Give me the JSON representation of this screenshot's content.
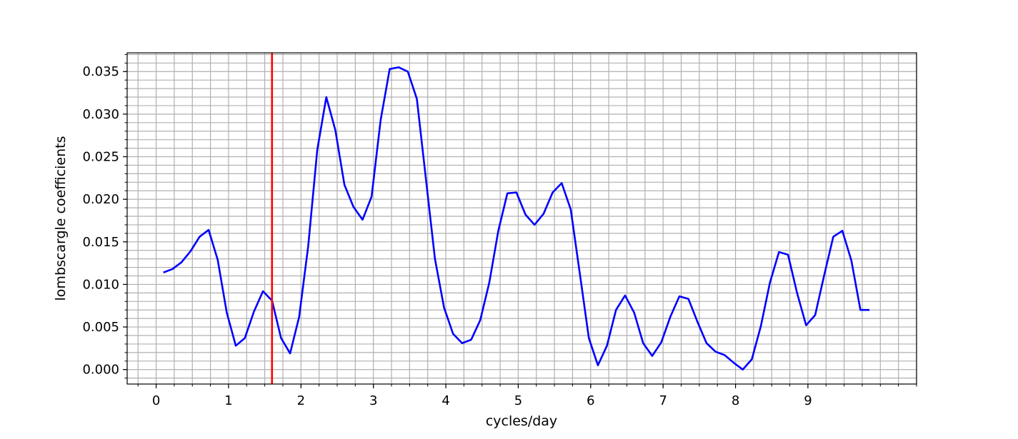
{
  "chart_data": {
    "type": "line",
    "title": "",
    "xlabel": "cycles/day",
    "ylabel": "lombscargle coefficients",
    "xlim": [
      -0.4,
      10.5
    ],
    "ylim": [
      -0.0017,
      0.0372
    ],
    "grid": true,
    "x_major_ticks": [
      0,
      1,
      2,
      3,
      4,
      5,
      6,
      7,
      8,
      9
    ],
    "x_major_tick_labels": [
      "0",
      "1",
      "2",
      "3",
      "4",
      "5",
      "6",
      "7",
      "8",
      "9"
    ],
    "y_major_ticks": [
      0.0,
      0.005,
      0.01,
      0.015,
      0.02,
      0.025,
      0.03,
      0.035
    ],
    "y_major_tick_labels": [
      "0.000",
      "0.005",
      "0.010",
      "0.015",
      "0.020",
      "0.025",
      "0.030",
      "0.035"
    ],
    "series": [
      {
        "color": "#0000ff",
        "x": [
          0.1,
          0.225,
          0.35,
          0.475,
          0.6,
          0.725,
          0.85,
          0.975,
          1.1,
          1.225,
          1.35,
          1.475,
          1.6,
          1.725,
          1.85,
          1.975,
          2.1,
          2.225,
          2.35,
          2.475,
          2.6,
          2.725,
          2.85,
          2.975,
          3.1,
          3.225,
          3.35,
          3.475,
          3.6,
          3.725,
          3.85,
          3.975,
          4.1,
          4.225,
          4.35,
          4.475,
          4.6,
          4.725,
          4.85,
          4.975,
          5.1,
          5.225,
          5.35,
          5.475,
          5.6,
          5.725,
          5.85,
          5.975,
          6.1,
          6.225,
          6.35,
          6.475,
          6.6,
          6.725,
          6.85,
          6.975,
          7.1,
          7.225,
          7.35,
          7.475,
          7.6,
          7.725,
          7.85,
          7.975,
          8.1,
          8.225,
          8.35,
          8.475,
          8.6,
          8.725,
          8.85,
          8.975,
          9.1,
          9.225,
          9.35,
          9.475,
          9.6,
          9.725,
          9.85
        ],
        "y": [
          0.0114,
          0.0118,
          0.0126,
          0.0139,
          0.0156,
          0.0164,
          0.0129,
          0.0067,
          0.0028,
          0.0037,
          0.0068,
          0.0092,
          0.0081,
          0.0037,
          0.0019,
          0.0062,
          0.0145,
          0.0258,
          0.032,
          0.0281,
          0.0217,
          0.0191,
          0.0176,
          0.0203,
          0.0293,
          0.0353,
          0.0355,
          0.035,
          0.0318,
          0.0224,
          0.013,
          0.0073,
          0.0042,
          0.0031,
          0.0035,
          0.0058,
          0.0102,
          0.0163,
          0.0207,
          0.0208,
          0.0182,
          0.017,
          0.0183,
          0.0208,
          0.0219,
          0.0188,
          0.0113,
          0.0037,
          0.0005,
          0.0028,
          0.007,
          0.0087,
          0.0067,
          0.0031,
          0.0016,
          0.0032,
          0.0062,
          0.0086,
          0.0083,
          0.0056,
          0.0031,
          0.0021,
          0.0017,
          0.0008,
          0.0,
          0.0012,
          0.0051,
          0.0102,
          0.0138,
          0.0135,
          0.009,
          0.0052,
          0.0064,
          0.0111,
          0.0156,
          0.0163,
          0.0128,
          0.007,
          0.007
        ]
      }
    ],
    "vertical_line": {
      "x": 1.6,
      "color": "#ff0000"
    }
  }
}
